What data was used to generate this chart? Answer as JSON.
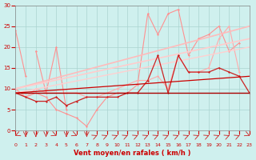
{
  "xlabel": "Vent moyen/en rafales ( km/h )",
  "xlim": [
    0,
    23
  ],
  "ylim": [
    0,
    30
  ],
  "xticks": [
    0,
    1,
    2,
    3,
    4,
    5,
    6,
    7,
    8,
    9,
    10,
    11,
    12,
    13,
    14,
    15,
    16,
    17,
    18,
    19,
    20,
    21,
    22,
    23
  ],
  "yticks": [
    0,
    5,
    10,
    15,
    20,
    25,
    30
  ],
  "bg_color": "#cff0ee",
  "grid_color": "#aad4d0",
  "series": [
    {
      "x": [
        0,
        1,
        2,
        3,
        4,
        5,
        6,
        7,
        8,
        9,
        10,
        11,
        12,
        13,
        14,
        15,
        16,
        17,
        18,
        19,
        20,
        21,
        22,
        23
      ],
      "y": [
        10,
        8,
        9,
        8,
        5,
        4,
        3,
        1,
        5,
        8,
        9,
        9,
        11,
        28,
        23,
        28,
        29,
        18,
        22,
        23,
        25,
        19,
        21,
        null
      ],
      "color": "#ff9090",
      "lw": 0.8,
      "marker": "D",
      "ms": 1.5
    },
    {
      "x": [
        0,
        1,
        2,
        3,
        4,
        5,
        6,
        7,
        8,
        9,
        10,
        11,
        12,
        13,
        14,
        15,
        16,
        17,
        18,
        19,
        20,
        21,
        22,
        23
      ],
      "y": [
        10,
        8,
        10,
        9,
        9,
        9,
        9,
        8,
        8,
        9,
        10,
        11,
        12,
        12,
        13,
        10,
        18,
        14,
        14,
        15,
        22,
        25,
        14,
        null
      ],
      "color": "#ffaaaa",
      "lw": 0.8,
      "marker": "D",
      "ms": 1.5
    },
    {
      "x": [
        0,
        1
      ],
      "y": [
        24,
        13
      ],
      "color": "#ff9090",
      "lw": 0.8,
      "marker": "D",
      "ms": 1.5
    },
    {
      "x": [
        2,
        3,
        4,
        5
      ],
      "y": [
        19,
        9,
        20,
        5
      ],
      "color": "#ff9090",
      "lw": 0.8,
      "marker": "D",
      "ms": 1.5
    },
    {
      "x": [
        0,
        23
      ],
      "y": [
        10,
        25
      ],
      "color": "#ffbbbb",
      "lw": 1.2,
      "marker": null,
      "ms": 0
    },
    {
      "x": [
        0,
        23
      ],
      "y": [
        10,
        22
      ],
      "color": "#ffcccc",
      "lw": 1.2,
      "marker": null,
      "ms": 0
    },
    {
      "x": [
        0,
        23
      ],
      "y": [
        9,
        20
      ],
      "color": "#ffd0d0",
      "lw": 1.0,
      "marker": null,
      "ms": 0
    },
    {
      "x": [
        0,
        1,
        2,
        3,
        4,
        5,
        6,
        7,
        8,
        9,
        10,
        11,
        12,
        13,
        14,
        15,
        16,
        17,
        18,
        19,
        20,
        21,
        22,
        23
      ],
      "y": [
        9,
        8,
        7,
        7,
        8,
        6,
        7,
        8,
        8,
        8,
        8,
        9,
        9,
        12,
        18,
        9,
        18,
        14,
        14,
        14,
        15,
        14,
        13,
        9
      ],
      "color": "#cc2222",
      "lw": 0.9,
      "marker": "D",
      "ms": 1.5
    },
    {
      "x": [
        0,
        23
      ],
      "y": [
        9,
        9
      ],
      "color": "#aa0000",
      "lw": 1.0,
      "marker": null,
      "ms": 0
    },
    {
      "x": [
        0,
        23
      ],
      "y": [
        9,
        13
      ],
      "color": "#cc0000",
      "lw": 0.9,
      "marker": null,
      "ms": 0
    }
  ],
  "wind_arrows": {
    "x": [
      0,
      1,
      2,
      3,
      4,
      5,
      6,
      7,
      8,
      9,
      10,
      11,
      12,
      13,
      14,
      15,
      16,
      17,
      18,
      19,
      20,
      21,
      22,
      23
    ],
    "angles_deg": [
      225,
      270,
      270,
      270,
      315,
      270,
      315,
      270,
      45,
      45,
      45,
      45,
      45,
      45,
      45,
      45,
      45,
      45,
      45,
      45,
      45,
      45,
      45,
      315
    ],
    "color": "#cc2222"
  }
}
